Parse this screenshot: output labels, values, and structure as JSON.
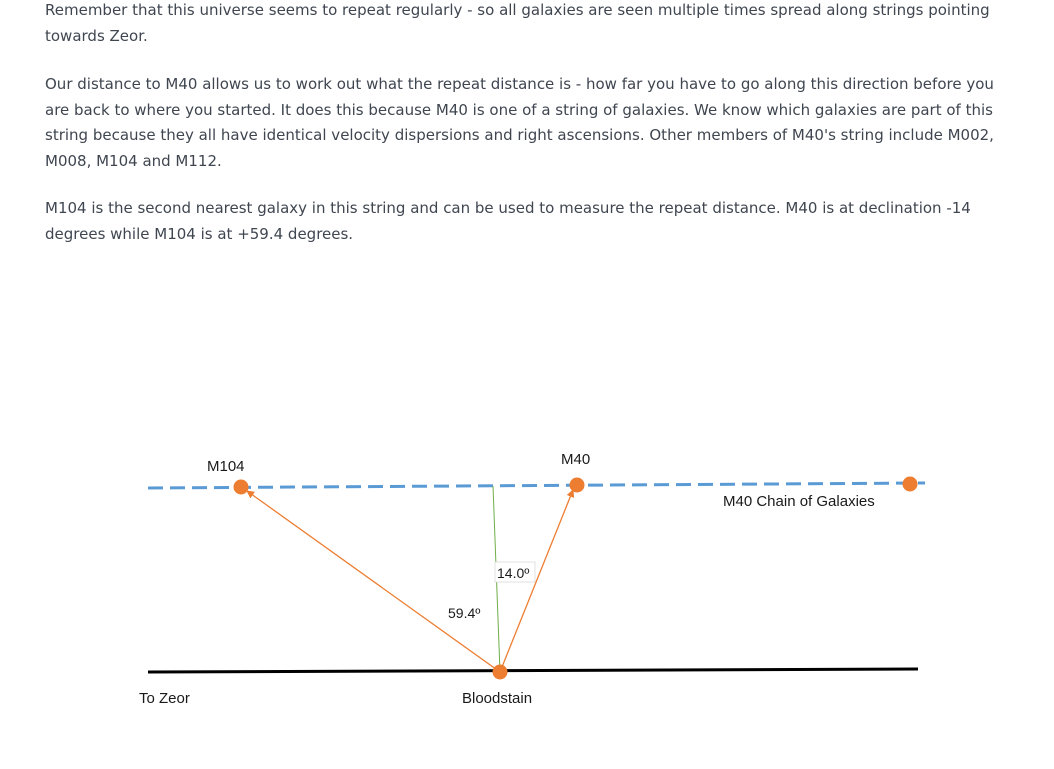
{
  "article": {
    "paragraphs": [
      "Remember that this universe seems to repeat regularly - so all galaxies are seen multiple times spread along strings pointing towards Zeor.",
      "Our distance to M40 allows us to work out what the repeat distance is - how far you have to go along this direction before you are back to where you started. It does this because M40 is one of a string of galaxies. We know which galaxies are part of this string because they all have identical velocity dispersions and right ascensions. Other members of M40's string include M002, M008, M104 and M112.",
      "M104 is the second nearest galaxy in this string and can be used to measure the repeat distance. M40 is at declination -14 degrees while M104 is at +59.4 degrees."
    ]
  },
  "diagram": {
    "labels": {
      "m104": "M104",
      "m40": "M40",
      "chain": "M40 Chain of Galaxies",
      "angle_m104": "59.4º",
      "angle_m40": "14.0º",
      "observer": "Bloodstain",
      "direction": "To Zeor"
    },
    "colors": {
      "chain_line": "#5b9bd5",
      "galaxy_dot": "#ed7d31",
      "sight_line": "#ed7d31",
      "vertical_line": "#70ad47",
      "baseline": "#000000"
    }
  }
}
